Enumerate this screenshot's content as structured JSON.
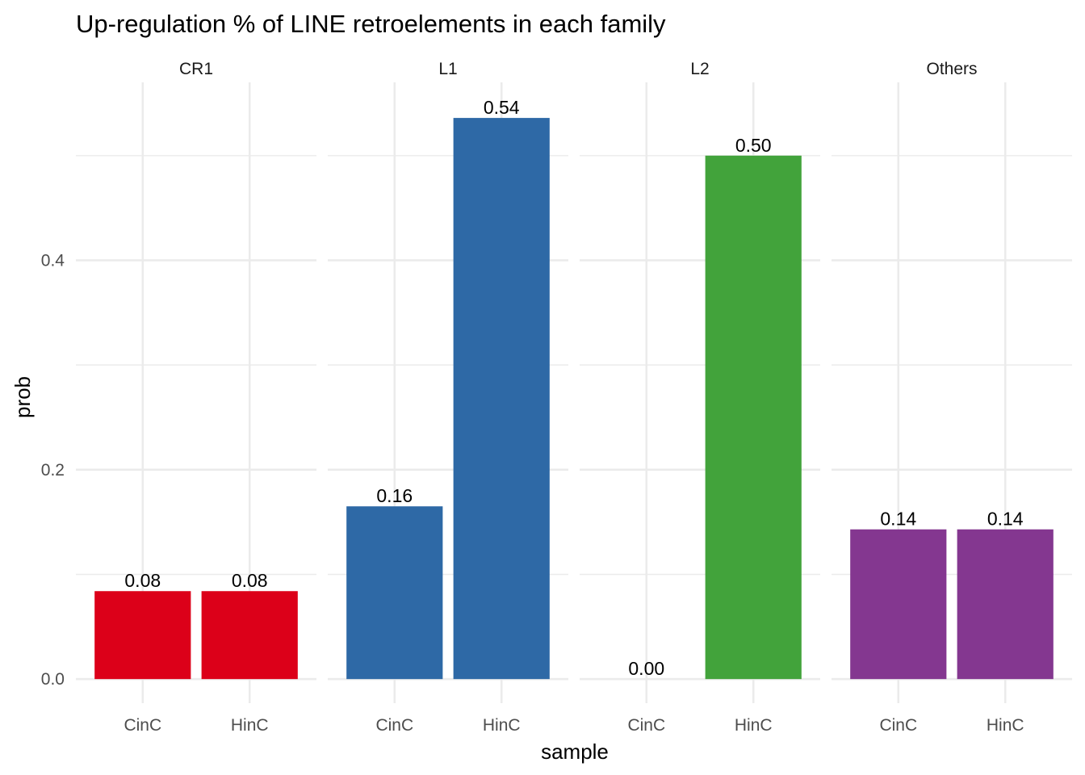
{
  "chart_data": {
    "type": "bar",
    "title": "Up-regulation % of LINE retroelements in each family",
    "xlabel": "sample",
    "ylabel": "prob",
    "ylim": [
      -0.023,
      0.57
    ],
    "y_ticks": [
      0.0,
      0.2,
      0.4
    ],
    "y_tick_labels": [
      "0.0",
      "0.2",
      "0.4"
    ],
    "y_minor_ticks": [
      0.1,
      0.3,
      0.5
    ],
    "grid": true,
    "legend": "none",
    "categories": [
      "CinC",
      "HinC"
    ],
    "facets": [
      {
        "name": "CR1",
        "color": "#dc0019",
        "values": [
          0.084,
          0.084
        ],
        "labels": [
          "0.08",
          "0.08"
        ]
      },
      {
        "name": "L1",
        "color": "#2e69a6",
        "values": [
          0.165,
          0.536
        ],
        "labels": [
          "0.16",
          "0.54"
        ]
      },
      {
        "name": "L2",
        "color": "#42a33b",
        "values": [
          0.0,
          0.5
        ],
        "labels": [
          "0.00",
          "0.50"
        ]
      },
      {
        "name": "Others",
        "color": "#843790",
        "values": [
          0.143,
          0.143
        ],
        "labels": [
          "0.14",
          "0.14"
        ]
      }
    ]
  }
}
